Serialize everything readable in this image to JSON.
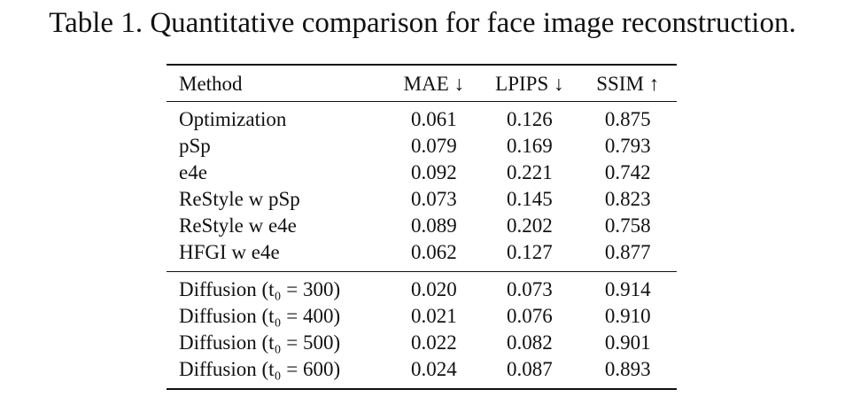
{
  "caption": "Table 1. Quantitative comparison for face image reconstruction.",
  "table": {
    "headers": {
      "method": "Method",
      "mae": "MAE ↓",
      "lpips": "LPIPS ↓",
      "ssim": "SSIM ↑"
    },
    "baseline_rows": [
      {
        "method": "Optimization",
        "mae": "0.061",
        "lpips": "0.126",
        "ssim": "0.875"
      },
      {
        "method": "pSp",
        "mae": "0.079",
        "lpips": "0.169",
        "ssim": "0.793"
      },
      {
        "method": "e4e",
        "mae": "0.092",
        "lpips": "0.221",
        "ssim": "0.742"
      },
      {
        "method": "ReStyle w pSp",
        "mae": "0.073",
        "lpips": "0.145",
        "ssim": "0.823"
      },
      {
        "method": "ReStyle w e4e",
        "mae": "0.089",
        "lpips": "0.202",
        "ssim": "0.758"
      },
      {
        "method": "HFGI w e4e",
        "mae": "0.062",
        "lpips": "0.127",
        "ssim": "0.877"
      }
    ],
    "diffusion_rows": [
      {
        "method": "Diffusion (t₀ = 300)",
        "mae": "0.020",
        "lpips": "0.073",
        "ssim": "0.914",
        "bold": true
      },
      {
        "method": "Diffusion (t₀ = 400)",
        "mae": "0.021",
        "lpips": "0.076",
        "ssim": "0.910",
        "bold": false
      },
      {
        "method": "Diffusion (t₀ = 500)",
        "mae": "0.022",
        "lpips": "0.082",
        "ssim": "0.901",
        "bold": false
      },
      {
        "method": "Diffusion (t₀ = 600)",
        "mae": "0.024",
        "lpips": "0.087",
        "ssim": "0.893",
        "bold": false
      }
    ]
  }
}
